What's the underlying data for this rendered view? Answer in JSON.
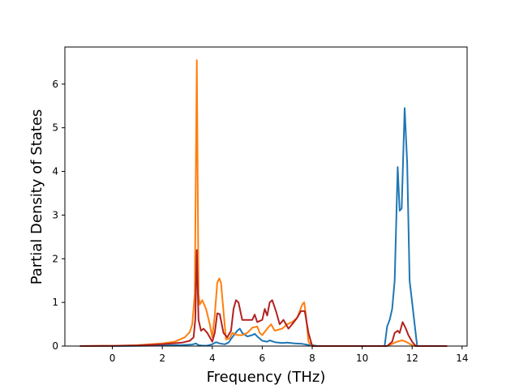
{
  "chart_data": {
    "type": "line",
    "xlabel": "Frequency (THz)",
    "ylabel": "Partial Density of States",
    "xlim": [
      -1.9,
      14.2
    ],
    "ylim": [
      0,
      6.85
    ],
    "xticks": [
      0,
      2,
      4,
      6,
      8,
      10,
      12,
      14
    ],
    "yticks": [
      0,
      1,
      2,
      3,
      4,
      5,
      6
    ],
    "xtick_labels": [
      "0",
      "2",
      "4",
      "6",
      "8",
      "10",
      "12",
      "14"
    ],
    "ytick_labels": [
      "0",
      "1",
      "2",
      "3",
      "4",
      "5",
      "6"
    ],
    "grid": false,
    "legend": "none",
    "series": [
      {
        "color": "#1f77b4",
        "points": [
          [
            -1.3,
            0
          ],
          [
            0,
            0
          ],
          [
            1,
            0.005
          ],
          [
            2,
            0.015
          ],
          [
            2.8,
            0.025
          ],
          [
            3.2,
            0.035
          ],
          [
            3.35,
            0.06
          ],
          [
            3.45,
            0.02
          ],
          [
            3.6,
            0.01
          ],
          [
            3.8,
            0.01
          ],
          [
            4,
            0.04
          ],
          [
            4.15,
            0.09
          ],
          [
            4.3,
            0.06
          ],
          [
            4.5,
            0.04
          ],
          [
            4.65,
            0.08
          ],
          [
            4.8,
            0.2
          ],
          [
            5,
            0.35
          ],
          [
            5.1,
            0.4
          ],
          [
            5.2,
            0.3
          ],
          [
            5.4,
            0.22
          ],
          [
            5.6,
            0.25
          ],
          [
            5.7,
            0.28
          ],
          [
            5.8,
            0.22
          ],
          [
            6,
            0.12
          ],
          [
            6.2,
            0.1
          ],
          [
            6.3,
            0.13
          ],
          [
            6.5,
            0.09
          ],
          [
            6.8,
            0.07
          ],
          [
            7,
            0.08
          ],
          [
            7.3,
            0.06
          ],
          [
            7.6,
            0.05
          ],
          [
            7.8,
            0.03
          ],
          [
            8,
            0.02
          ],
          [
            8.2,
            0
          ],
          [
            10.9,
            0
          ],
          [
            11,
            0.45
          ],
          [
            11.1,
            0.6
          ],
          [
            11.2,
            0.85
          ],
          [
            11.3,
            1.5
          ],
          [
            11.42,
            4.1
          ],
          [
            11.5,
            3.1
          ],
          [
            11.58,
            3.15
          ],
          [
            11.7,
            5.45
          ],
          [
            11.8,
            4.2
          ],
          [
            11.9,
            1.5
          ],
          [
            12,
            1
          ],
          [
            12.1,
            0.5
          ],
          [
            12.2,
            0
          ],
          [
            13.4,
            0
          ]
        ]
      },
      {
        "color": "#ff7f0e",
        "points": [
          [
            -1.3,
            0
          ],
          [
            0,
            0.005
          ],
          [
            1,
            0.02
          ],
          [
            2,
            0.06
          ],
          [
            2.5,
            0.1
          ],
          [
            2.9,
            0.2
          ],
          [
            3.1,
            0.32
          ],
          [
            3.2,
            0.5
          ],
          [
            3.3,
            1.2
          ],
          [
            3.38,
            6.55
          ],
          [
            3.45,
            1.2
          ],
          [
            3.5,
            0.95
          ],
          [
            3.6,
            1.05
          ],
          [
            3.75,
            0.85
          ],
          [
            3.9,
            0.5
          ],
          [
            4,
            0.2
          ],
          [
            4.1,
            0.7
          ],
          [
            4.2,
            1.45
          ],
          [
            4.28,
            1.55
          ],
          [
            4.35,
            1.45
          ],
          [
            4.45,
            0.8
          ],
          [
            4.55,
            0.15
          ],
          [
            4.7,
            0.18
          ],
          [
            4.8,
            0.3
          ],
          [
            5,
            0.25
          ],
          [
            5.2,
            0.25
          ],
          [
            5.4,
            0.3
          ],
          [
            5.6,
            0.42
          ],
          [
            5.8,
            0.45
          ],
          [
            5.9,
            0.3
          ],
          [
            6,
            0.25
          ],
          [
            6.2,
            0.4
          ],
          [
            6.35,
            0.5
          ],
          [
            6.5,
            0.35
          ],
          [
            6.8,
            0.4
          ],
          [
            7,
            0.5
          ],
          [
            7.2,
            0.55
          ],
          [
            7.4,
            0.65
          ],
          [
            7.6,
            0.95
          ],
          [
            7.68,
            1.0
          ],
          [
            7.75,
            0.7
          ],
          [
            7.85,
            0.1
          ],
          [
            8,
            0
          ],
          [
            11,
            0
          ],
          [
            11.2,
            0.05
          ],
          [
            11.4,
            0.1
          ],
          [
            11.6,
            0.13
          ],
          [
            11.75,
            0.1
          ],
          [
            11.9,
            0.05
          ],
          [
            12.1,
            0
          ],
          [
            13.4,
            0
          ]
        ]
      },
      {
        "color": "#b22222",
        "points": [
          [
            -1.3,
            0
          ],
          [
            0,
            0.005
          ],
          [
            1,
            0.015
          ],
          [
            2,
            0.04
          ],
          [
            2.8,
            0.08
          ],
          [
            3.1,
            0.12
          ],
          [
            3.25,
            0.2
          ],
          [
            3.32,
            0.6
          ],
          [
            3.38,
            2.2
          ],
          [
            3.45,
            0.6
          ],
          [
            3.55,
            0.35
          ],
          [
            3.65,
            0.4
          ],
          [
            3.8,
            0.3
          ],
          [
            4,
            0.1
          ],
          [
            4.1,
            0.3
          ],
          [
            4.2,
            0.75
          ],
          [
            4.3,
            0.73
          ],
          [
            4.45,
            0.3
          ],
          [
            4.6,
            0.2
          ],
          [
            4.75,
            0.35
          ],
          [
            4.85,
            0.85
          ],
          [
            4.95,
            1.05
          ],
          [
            5.05,
            1.0
          ],
          [
            5.2,
            0.6
          ],
          [
            5.4,
            0.6
          ],
          [
            5.6,
            0.6
          ],
          [
            5.7,
            0.72
          ],
          [
            5.8,
            0.55
          ],
          [
            6,
            0.6
          ],
          [
            6.1,
            0.85
          ],
          [
            6.2,
            0.7
          ],
          [
            6.3,
            1.0
          ],
          [
            6.4,
            1.05
          ],
          [
            6.55,
            0.8
          ],
          [
            6.7,
            0.5
          ],
          [
            6.85,
            0.6
          ],
          [
            7.05,
            0.4
          ],
          [
            7.2,
            0.5
          ],
          [
            7.4,
            0.65
          ],
          [
            7.55,
            0.8
          ],
          [
            7.7,
            0.8
          ],
          [
            7.85,
            0.3
          ],
          [
            8,
            0
          ],
          [
            11,
            0
          ],
          [
            11.2,
            0.1
          ],
          [
            11.3,
            0.3
          ],
          [
            11.42,
            0.35
          ],
          [
            11.5,
            0.3
          ],
          [
            11.62,
            0.55
          ],
          [
            11.75,
            0.4
          ],
          [
            11.85,
            0.25
          ],
          [
            12,
            0.1
          ],
          [
            12.15,
            0
          ],
          [
            13.4,
            0
          ]
        ]
      }
    ]
  }
}
